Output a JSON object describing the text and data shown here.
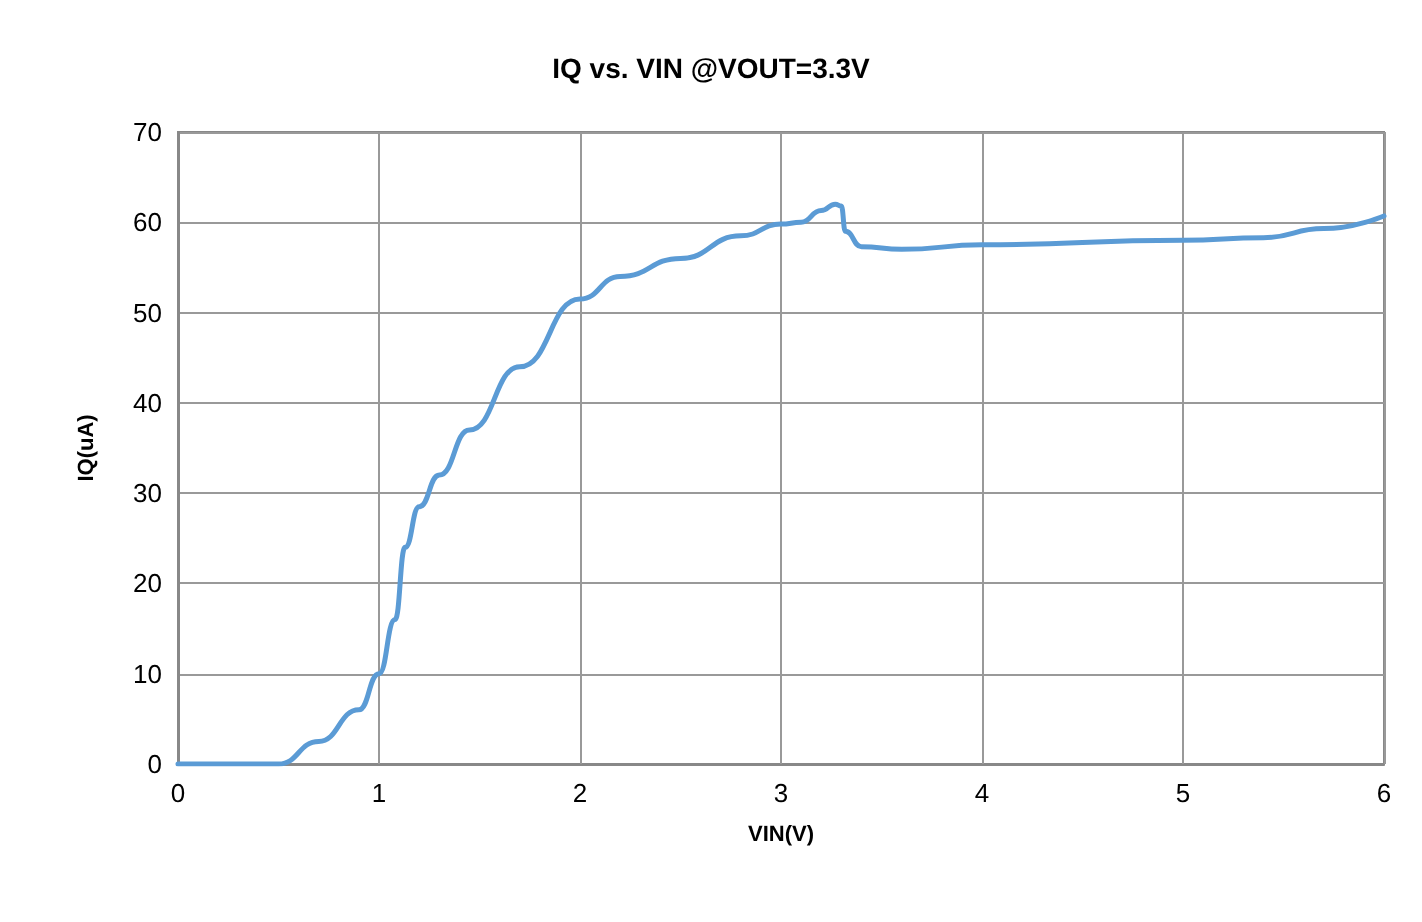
{
  "chart_data": {
    "type": "line",
    "title": "IQ vs. VIN @VOUT=3.3V",
    "xlabel": "VIN(V)",
    "ylabel": "IQ(uA)",
    "xlim": [
      0,
      6
    ],
    "xticks": [
      0,
      1,
      2,
      3,
      4,
      5,
      6
    ],
    "ylim": [
      0,
      70
    ],
    "yticks": [
      0,
      10,
      20,
      30,
      40,
      50,
      60,
      70
    ],
    "grid": true,
    "marker": "none",
    "line_style": "solid",
    "series": [
      {
        "color": "#5b9bd5",
        "x": [
          0,
          0.5,
          0.7,
          0.9,
          1.0,
          1.08,
          1.13,
          1.2,
          1.3,
          1.45,
          1.7,
          2.0,
          2.2,
          2.5,
          2.8,
          3.0,
          3.1,
          3.2,
          3.27,
          3.3,
          3.32,
          3.4,
          3.6,
          4.0,
          5.0,
          5.4,
          5.7,
          6.0
        ],
        "values": [
          0,
          0,
          2.5,
          6,
          10,
          16,
          24,
          28.5,
          32,
          37,
          44,
          51.5,
          54,
          56,
          58.5,
          59.8,
          60,
          61.3,
          62,
          61.8,
          59,
          57.3,
          57,
          57.5,
          58,
          58.3,
          59.3,
          60.7
        ]
      }
    ]
  }
}
